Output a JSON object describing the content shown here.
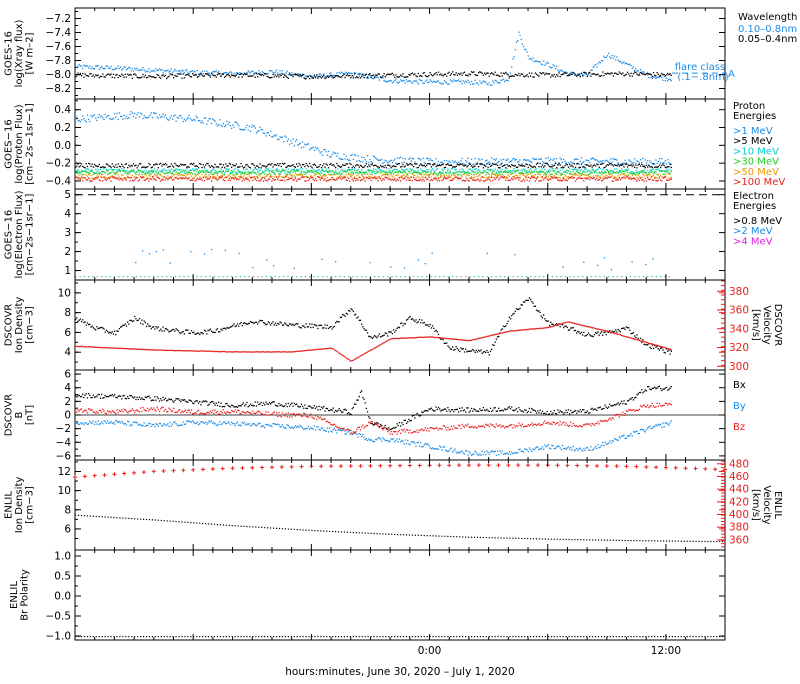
{
  "time_axis": {
    "label": "hours:minutes, June 30, 2020 – July  1, 2020",
    "range_hours": [
      -18,
      15
    ],
    "tick_labels": [
      {
        "hour": 0,
        "label": "0:00"
      },
      {
        "hour": 12,
        "label": "12:00"
      }
    ]
  },
  "colors": {
    "black": "#000000",
    "blue": "#1a8ce8",
    "cyan": "#00d0d0",
    "green": "#22cc22",
    "orange": "#ee9900",
    "red": "#e8201a",
    "magenta": "#e020e0",
    "teal": "#20b4a0"
  },
  "chart_data": [
    {
      "id": "xray",
      "type": "scatter",
      "ylabel_lines": [
        "GOES-16",
        "log(Xray flux)",
        "[W m–2]"
      ],
      "ylim": [
        -8.35,
        -7.05
      ],
      "yticks": [
        -8.2,
        -8.0,
        -7.8,
        -7.6,
        -7.4,
        -7.2
      ],
      "tick_labels": [
        "−8.2",
        "−8.0",
        "−7.8",
        "−7.6",
        "−7.4",
        "−7.2"
      ],
      "legend_title": "Wavelength",
      "series": [
        {
          "name": "0.10–0.8nm",
          "color": "blue",
          "end_hour": 12.3,
          "points": [
            [
              -18,
              -7.88
            ],
            [
              -16,
              -7.9
            ],
            [
              -14,
              -7.93
            ],
            [
              -12,
              -7.96
            ],
            [
              -10,
              -7.98
            ],
            [
              -8,
              -7.95
            ],
            [
              -6,
              -8.02
            ],
            [
              -4,
              -7.98
            ],
            [
              -2,
              -8.08
            ],
            [
              0,
              -8.1
            ],
            [
              2,
              -8.1
            ],
            [
              3,
              -8.12
            ],
            [
              4,
              -8.05
            ],
            [
              4.5,
              -7.4
            ],
            [
              5,
              -7.75
            ],
            [
              6,
              -7.85
            ],
            [
              7,
              -7.98
            ],
            [
              8,
              -8.0
            ],
            [
              9,
              -7.7
            ],
            [
              10,
              -7.85
            ],
            [
              11,
              -8.0
            ],
            [
              12,
              -8.05
            ],
            [
              12.3,
              -8.05
            ]
          ]
        },
        {
          "name": "0.05–0.4nm",
          "color": "black",
          "end_hour": 12.3,
          "points": [
            [
              -18,
              -8.0
            ],
            [
              -14,
              -8.02
            ],
            [
              -10,
              -8.0
            ],
            [
              -6,
              -8.02
            ],
            [
              -2,
              -8.0
            ],
            [
              2,
              -7.98
            ],
            [
              6,
              -8.0
            ],
            [
              10,
              -7.98
            ],
            [
              12.3,
              -8.0
            ]
          ]
        }
      ],
      "flare_label_lines": [
        "flare class",
        "(.1−.8nm)"
      ],
      "flare_ref": {
        "y": -7.98,
        "from_hour": 12.3,
        "label": "A"
      }
    },
    {
      "id": "proton",
      "type": "scatter",
      "ylabel_lines": [
        "GOES−16",
        "log(Proton Flux)",
        "[cm−2s−1sr−1]"
      ],
      "ylim": [
        -0.49,
        0.52
      ],
      "yticks": [
        -0.4,
        -0.2,
        0.0,
        0.2,
        0.4
      ],
      "tick_labels": [
        "−0.4",
        "−0.2",
        "0.0",
        "0.2",
        "0.4"
      ],
      "legend_title_lines": [
        "Proton",
        "Energies"
      ],
      "series": [
        {
          "name": ">1 MeV",
          "color": "blue",
          "end_hour": 12.3,
          "points": [
            [
              -18,
              0.3
            ],
            [
              -15,
              0.35
            ],
            [
              -12,
              0.3
            ],
            [
              -9,
              0.2
            ],
            [
              -7,
              0.05
            ],
            [
              -5,
              -0.1
            ],
            [
              -3,
              -0.15
            ],
            [
              0,
              -0.18
            ],
            [
              6,
              -0.17
            ],
            [
              12.3,
              -0.18
            ]
          ]
        },
        {
          "name": ">5 MeV",
          "color": "black",
          "end_hour": 12.3,
          "points": [
            [
              -18,
              -0.22
            ],
            [
              12.3,
              -0.22
            ]
          ]
        },
        {
          "name": ">10 MeV",
          "color": "cyan",
          "end_hour": 12.3,
          "points": [
            [
              -18,
              -0.28
            ],
            [
              12.3,
              -0.28
            ]
          ]
        },
        {
          "name": ">30 MeV",
          "color": "green",
          "end_hour": 12.3,
          "points": [
            [
              -18,
              -0.3
            ],
            [
              12.3,
              -0.3
            ]
          ]
        },
        {
          "name": ">50 MeV",
          "color": "orange",
          "end_hour": 12.3,
          "points": [
            [
              -18,
              -0.34
            ],
            [
              12.3,
              -0.34
            ]
          ]
        },
        {
          "name": ">100 MeV",
          "color": "red",
          "end_hour": 12.3,
          "points": [
            [
              -18,
              -0.37
            ],
            [
              12.3,
              -0.37
            ]
          ]
        }
      ]
    },
    {
      "id": "electron",
      "type": "scatter",
      "ylabel_lines": [
        "GOES−16",
        "log(Electron Flux)",
        "[cm−2s−1sr−1]"
      ],
      "ylim": [
        0.5,
        5.3
      ],
      "yticks": [
        1,
        2,
        3,
        4,
        5
      ],
      "tick_labels": [
        "1",
        "2",
        "3",
        "4",
        "5"
      ],
      "legend_title_lines": [
        "Electron",
        "Energies"
      ],
      "threshold": 5.0,
      "series": [
        {
          "name": ">0.8 MeV",
          "color": "black",
          "end_hour": 12.3,
          "points": []
        },
        {
          "name": ">2 MeV",
          "color": "blue",
          "end_hour": 12.3,
          "points": [
            [
              -16,
              1.7
            ],
            [
              -12,
              1.9
            ],
            [
              -8,
              1.5
            ],
            [
              -4,
              1.7
            ],
            [
              0,
              1.5
            ],
            [
              3,
              1.8
            ],
            [
              6,
              1.6
            ],
            [
              9,
              1.4
            ],
            [
              12,
              1.5
            ]
          ]
        },
        {
          "name": ">4 MeV",
          "color": "magenta",
          "end_hour": 12.3,
          "points": []
        }
      ],
      "baseline": {
        "y": 0.7,
        "color": "teal"
      }
    },
    {
      "id": "dscovr_plasma",
      "type": "scatter",
      "ylabel_lines": [
        "DSCOVR",
        "Ion Density",
        "[cm−3]"
      ],
      "ylim": [
        2.2,
        11.3
      ],
      "yticks": [
        4,
        6,
        8,
        10
      ],
      "tick_labels": [
        "4",
        "6",
        "8",
        "10"
      ],
      "right_ylabel_lines": [
        "DSCOVR",
        "Velocity",
        "[km/s]"
      ],
      "right_ylim": [
        296,
        392
      ],
      "right_yticks": [
        300,
        320,
        340,
        360,
        380
      ],
      "right_tick_labels": [
        "300",
        "320",
        "340",
        "360",
        "380"
      ],
      "series": [
        {
          "name": "Ion Density",
          "color": "black",
          "axis": "left",
          "end_hour": 12.3,
          "points": [
            [
              -18,
              7.5
            ],
            [
              -17,
              6.5
            ],
            [
              -16,
              6.0
            ],
            [
              -15,
              7.5
            ],
            [
              -14,
              6.5
            ],
            [
              -12,
              6.0
            ],
            [
              -11,
              6.2
            ],
            [
              -9,
              7.2
            ],
            [
              -7,
              6.8
            ],
            [
              -5,
              6.6
            ],
            [
              -4,
              8.5
            ],
            [
              -3,
              5.5
            ],
            [
              -2,
              6.0
            ],
            [
              -1,
              7.5
            ],
            [
              0,
              6.8
            ],
            [
              1,
              4.5
            ],
            [
              2,
              4.2
            ],
            [
              3,
              4.0
            ],
            [
              4,
              7.5
            ],
            [
              5,
              9.5
            ],
            [
              6,
              7.0
            ],
            [
              7,
              6.5
            ],
            [
              8,
              5.8
            ],
            [
              9,
              6.0
            ],
            [
              10,
              6.5
            ],
            [
              11,
              4.8
            ],
            [
              12.3,
              4.0
            ]
          ]
        },
        {
          "name": "Velocity",
          "color": "red",
          "axis": "right",
          "end_hour": 12.3,
          "points": [
            [
              -18,
              322
            ],
            [
              -14,
              318
            ],
            [
              -10,
              316
            ],
            [
              -7,
              316
            ],
            [
              -5,
              320
            ],
            [
              -4,
              306
            ],
            [
              -2,
              330
            ],
            [
              0,
              332
            ],
            [
              2,
              328
            ],
            [
              4,
              338
            ],
            [
              6,
              342
            ],
            [
              7,
              348
            ],
            [
              9,
              338
            ],
            [
              11,
              326
            ],
            [
              12.3,
              318
            ]
          ]
        }
      ]
    },
    {
      "id": "dscovr_mag",
      "type": "scatter",
      "ylabel_lines": [
        "DSCOVR",
        "B",
        "[nT]"
      ],
      "ylim": [
        -6.6,
        6.6
      ],
      "yticks": [
        -6,
        -4,
        -2,
        0,
        2,
        4,
        6
      ],
      "tick_labels": [
        "−6",
        "−4",
        "−2",
        "0",
        "2",
        "4",
        "6"
      ],
      "zero_line": true,
      "series": [
        {
          "name": "Bx",
          "color": "black",
          "end_hour": 12.3,
          "points": [
            [
              -18,
              3.0
            ],
            [
              -16,
              2.8
            ],
            [
              -14,
              2.5
            ],
            [
              -12,
              2.0
            ],
            [
              -10,
              1.5
            ],
            [
              -8,
              1.8
            ],
            [
              -6,
              1.2
            ],
            [
              -4,
              0.5
            ],
            [
              -3.5,
              3.5
            ],
            [
              -3,
              -1.0
            ],
            [
              -2,
              -2.0
            ],
            [
              0,
              1.0
            ],
            [
              2,
              0.8
            ],
            [
              4,
              1.0
            ],
            [
              6,
              0.5
            ],
            [
              8,
              0.6
            ],
            [
              10,
              2.0
            ],
            [
              11,
              4.0
            ],
            [
              12.3,
              4.0
            ]
          ]
        },
        {
          "name": "By",
          "color": "blue",
          "end_hour": 12.3,
          "points": [
            [
              -18,
              -1.0
            ],
            [
              -16,
              -1.0
            ],
            [
              -14,
              -1.5
            ],
            [
              -12,
              -1.0
            ],
            [
              -10,
              -1.2
            ],
            [
              -8,
              -1.5
            ],
            [
              -6,
              -1.8
            ],
            [
              -4,
              -2.5
            ],
            [
              -3,
              -3.5
            ],
            [
              -2,
              -3.5
            ],
            [
              0,
              -4.5
            ],
            [
              2,
              -5.5
            ],
            [
              4,
              -5.5
            ],
            [
              6,
              -4.5
            ],
            [
              8,
              -5.0
            ],
            [
              10,
              -3.0
            ],
            [
              11,
              -2.0
            ],
            [
              12.3,
              -1.0
            ]
          ]
        },
        {
          "name": "Bz",
          "color": "red",
          "end_hour": 12.3,
          "points": [
            [
              -18,
              0.8
            ],
            [
              -16,
              0.5
            ],
            [
              -14,
              1.0
            ],
            [
              -12,
              0.5
            ],
            [
              -10,
              0.6
            ],
            [
              -8,
              0.2
            ],
            [
              -6,
              0.0
            ],
            [
              -4,
              -2.5
            ],
            [
              -3,
              -1.0
            ],
            [
              -2,
              -2.5
            ],
            [
              0,
              -2.0
            ],
            [
              2,
              -1.5
            ],
            [
              4,
              -1.5
            ],
            [
              6,
              -1.0
            ],
            [
              8,
              -1.5
            ],
            [
              10,
              0.5
            ],
            [
              11,
              1.5
            ],
            [
              12.3,
              1.6
            ]
          ]
        }
      ]
    },
    {
      "id": "enlil_plasma",
      "type": "line",
      "ylabel_lines": [
        "ENLIL",
        "Ion Density",
        "[cm−3]"
      ],
      "ylim": [
        3.8,
        13.2
      ],
      "yticks": [
        6,
        8,
        10,
        12
      ],
      "tick_labels": [
        "6",
        "8",
        "10",
        "12"
      ],
      "right_ylabel_lines": [
        "ENLIL",
        "Velocity",
        "[km/s]"
      ],
      "right_ylim": [
        344,
        486
      ],
      "right_yticks": [
        360,
        380,
        400,
        420,
        440,
        460,
        480
      ],
      "right_tick_labels": [
        "360",
        "380",
        "400",
        "420",
        "440",
        "460",
        "480"
      ],
      "series": [
        {
          "name": "Ion Density",
          "color": "black",
          "axis": "left",
          "dotted": true,
          "points": [
            [
              -18,
              7.5
            ],
            [
              -14,
              7.0
            ],
            [
              -10,
              6.4
            ],
            [
              -6,
              5.9
            ],
            [
              -2,
              5.5
            ],
            [
              2,
              5.2
            ],
            [
              6,
              5.0
            ],
            [
              10,
              4.85
            ],
            [
              14,
              4.75
            ],
            [
              15,
              4.75
            ]
          ]
        },
        {
          "name": "Velocity",
          "color": "red",
          "axis": "right",
          "points": [
            [
              -18,
              459
            ],
            [
              -14,
              468
            ],
            [
              -10,
              473
            ],
            [
              -6,
              476
            ],
            [
              -2,
              477
            ],
            [
              2,
              478
            ],
            [
              6,
              478
            ],
            [
              10,
              476
            ],
            [
              14,
              472
            ],
            [
              15,
              471
            ]
          ]
        }
      ]
    },
    {
      "id": "enlil_polarity",
      "type": "line",
      "ylabel_lines": [
        "ENLIL",
        "Br Polarity"
      ],
      "ylim": [
        -1.1,
        1.15
      ],
      "yticks": [
        -1.0,
        -0.5,
        0.0,
        0.5,
        1.0
      ],
      "tick_labels": [
        "−1.0",
        "−0.5",
        "0.0",
        "0.5",
        "1.0"
      ],
      "series": [
        {
          "name": "Br Polarity",
          "color": "black",
          "dotted": true,
          "points": [
            [
              -18,
              -1.0
            ],
            [
              15,
              -1.0
            ]
          ]
        }
      ]
    }
  ]
}
